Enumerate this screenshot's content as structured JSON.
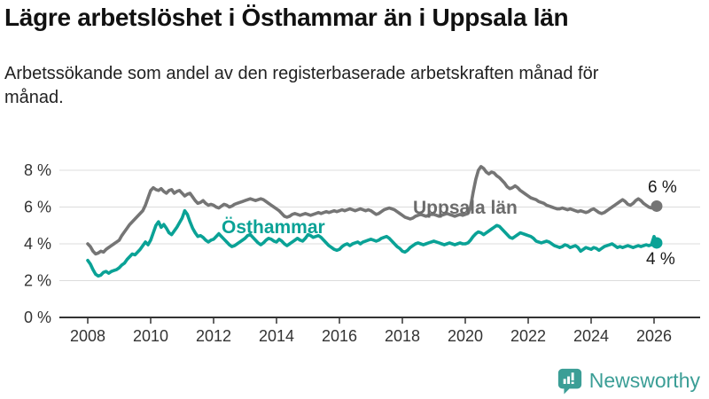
{
  "header": {
    "title": "Lägre arbetslöshet i Östhammar än i Uppsala län",
    "subtitle": "Arbetssökande som andel av den registerbaserade arbetskraften månad för månad."
  },
  "branding": {
    "logo_text": "Newsworthy",
    "logo_color": "#3b9e96"
  },
  "chart_data": {
    "type": "line",
    "title": "Lägre arbetslöshet i Östhammar än i Uppsala län",
    "xlabel": "",
    "ylabel": "",
    "x_start": "2008-01",
    "x_step": "1 month",
    "x_end": "2026-02",
    "xticks": [
      2008,
      2010,
      2012,
      2014,
      2016,
      2018,
      2020,
      2022,
      2024,
      2026
    ],
    "yticks": [
      "0 %",
      "2 %",
      "4 %",
      "6 %",
      "8 %"
    ],
    "ytick_values": [
      0,
      2,
      4,
      6,
      8
    ],
    "ylim": [
      0,
      8.6
    ],
    "grid": true,
    "legend_position": "inline-labels",
    "colors": {
      "grid": "#dcdcdc",
      "axis": "#333333",
      "tick_text": "#333333",
      "end_label_text": "#1a1a1a"
    },
    "series": [
      {
        "name": "Uppsala län",
        "color": "#757575",
        "label_color": "#6b6b6b",
        "end_label": "6 %",
        "end_value": 6.05,
        "values": [
          4.0,
          3.85,
          3.6,
          3.45,
          3.5,
          3.6,
          3.55,
          3.7,
          3.8,
          3.9,
          4.0,
          4.1,
          4.2,
          4.45,
          4.65,
          4.85,
          5.05,
          5.2,
          5.35,
          5.5,
          5.65,
          5.8,
          6.1,
          6.5,
          6.9,
          7.05,
          6.95,
          6.9,
          7.0,
          6.85,
          6.75,
          6.9,
          6.95,
          6.75,
          6.85,
          6.9,
          6.75,
          6.6,
          6.7,
          6.75,
          6.55,
          6.35,
          6.2,
          6.25,
          6.35,
          6.2,
          6.1,
          6.15,
          6.1,
          6.0,
          5.95,
          6.05,
          6.15,
          6.1,
          6.0,
          6.05,
          6.15,
          6.2,
          6.25,
          6.3,
          6.35,
          6.4,
          6.45,
          6.4,
          6.35,
          6.4,
          6.45,
          6.4,
          6.3,
          6.2,
          6.1,
          6.0,
          5.9,
          5.8,
          5.65,
          5.5,
          5.45,
          5.5,
          5.6,
          5.65,
          5.6,
          5.55,
          5.6,
          5.65,
          5.6,
          5.55,
          5.6,
          5.65,
          5.7,
          5.65,
          5.7,
          5.75,
          5.7,
          5.75,
          5.8,
          5.75,
          5.8,
          5.85,
          5.8,
          5.85,
          5.9,
          5.85,
          5.8,
          5.85,
          5.9,
          5.85,
          5.8,
          5.85,
          5.8,
          5.7,
          5.6,
          5.65,
          5.75,
          5.85,
          5.9,
          5.95,
          5.9,
          5.85,
          5.75,
          5.65,
          5.55,
          5.45,
          5.4,
          5.35,
          5.4,
          5.5,
          5.55,
          5.6,
          5.55,
          5.5,
          5.55,
          5.6,
          5.6,
          5.55,
          5.5,
          5.55,
          5.6,
          5.65,
          5.6,
          5.55,
          5.5,
          5.55,
          5.6,
          5.55,
          5.6,
          5.65,
          6.0,
          6.8,
          7.5,
          8.0,
          8.2,
          8.1,
          7.9,
          7.8,
          7.9,
          7.85,
          7.7,
          7.6,
          7.45,
          7.3,
          7.1,
          7.0,
          7.05,
          7.15,
          7.05,
          6.9,
          6.8,
          6.7,
          6.6,
          6.5,
          6.45,
          6.4,
          6.3,
          6.25,
          6.2,
          6.1,
          6.05,
          6.0,
          5.95,
          5.9,
          5.9,
          5.95,
          5.9,
          5.85,
          5.9,
          5.85,
          5.8,
          5.75,
          5.8,
          5.75,
          5.7,
          5.75,
          5.85,
          5.9,
          5.8,
          5.7,
          5.65,
          5.7,
          5.8,
          5.9,
          6.0,
          6.1,
          6.2,
          6.3,
          6.4,
          6.3,
          6.15,
          6.1,
          6.2,
          6.35,
          6.45,
          6.35,
          6.2,
          6.1,
          6.0,
          5.95,
          6.0,
          6.05
        ]
      },
      {
        "name": "Östhammar",
        "color": "#0aa296",
        "label_color": "#0aa296",
        "end_label": "4 %",
        "end_value": 4.05,
        "values": [
          3.1,
          2.9,
          2.6,
          2.35,
          2.25,
          2.3,
          2.45,
          2.5,
          2.4,
          2.5,
          2.55,
          2.6,
          2.7,
          2.85,
          2.95,
          3.15,
          3.3,
          3.45,
          3.4,
          3.55,
          3.7,
          3.9,
          4.1,
          3.95,
          4.2,
          4.6,
          5.0,
          5.2,
          4.9,
          5.05,
          4.85,
          4.6,
          4.5,
          4.7,
          4.9,
          5.15,
          5.4,
          5.8,
          5.6,
          5.2,
          4.85,
          4.6,
          4.4,
          4.45,
          4.35,
          4.2,
          4.1,
          4.2,
          4.25,
          4.4,
          4.55,
          4.4,
          4.25,
          4.1,
          3.95,
          3.85,
          3.9,
          4.0,
          4.1,
          4.2,
          4.3,
          4.45,
          4.5,
          4.35,
          4.2,
          4.05,
          3.95,
          4.05,
          4.2,
          4.3,
          4.25,
          4.15,
          4.1,
          4.25,
          4.15,
          4.0,
          3.9,
          4.0,
          4.1,
          4.2,
          4.3,
          4.2,
          4.15,
          4.3,
          4.5,
          4.45,
          4.35,
          4.4,
          4.45,
          4.35,
          4.2,
          4.05,
          3.9,
          3.8,
          3.7,
          3.65,
          3.7,
          3.85,
          3.95,
          4.0,
          3.9,
          4.0,
          4.05,
          4.1,
          4.0,
          4.1,
          4.15,
          4.2,
          4.25,
          4.2,
          4.15,
          4.2,
          4.3,
          4.35,
          4.4,
          4.3,
          4.15,
          4.0,
          3.85,
          3.75,
          3.6,
          3.55,
          3.65,
          3.8,
          3.9,
          4.0,
          4.05,
          4.0,
          3.95,
          4.0,
          4.05,
          4.1,
          4.15,
          4.1,
          4.05,
          4.0,
          3.95,
          4.0,
          4.05,
          4.0,
          3.95,
          4.0,
          4.05,
          4.0,
          4.0,
          4.05,
          4.2,
          4.4,
          4.55,
          4.65,
          4.6,
          4.5,
          4.6,
          4.7,
          4.8,
          4.9,
          5.0,
          4.95,
          4.8,
          4.65,
          4.5,
          4.35,
          4.3,
          4.4,
          4.5,
          4.6,
          4.55,
          4.5,
          4.45,
          4.4,
          4.3,
          4.15,
          4.1,
          4.05,
          4.1,
          4.15,
          4.1,
          4.0,
          3.9,
          3.85,
          3.8,
          3.85,
          3.95,
          3.9,
          3.8,
          3.85,
          3.9,
          3.8,
          3.6,
          3.7,
          3.8,
          3.75,
          3.7,
          3.8,
          3.75,
          3.65,
          3.75,
          3.85,
          3.9,
          3.95,
          4.0,
          3.9,
          3.8,
          3.85,
          3.8,
          3.85,
          3.9,
          3.85,
          3.8,
          3.85,
          3.9,
          3.85,
          3.9,
          3.95,
          3.9,
          3.95,
          4.4,
          4.05
        ]
      }
    ]
  }
}
